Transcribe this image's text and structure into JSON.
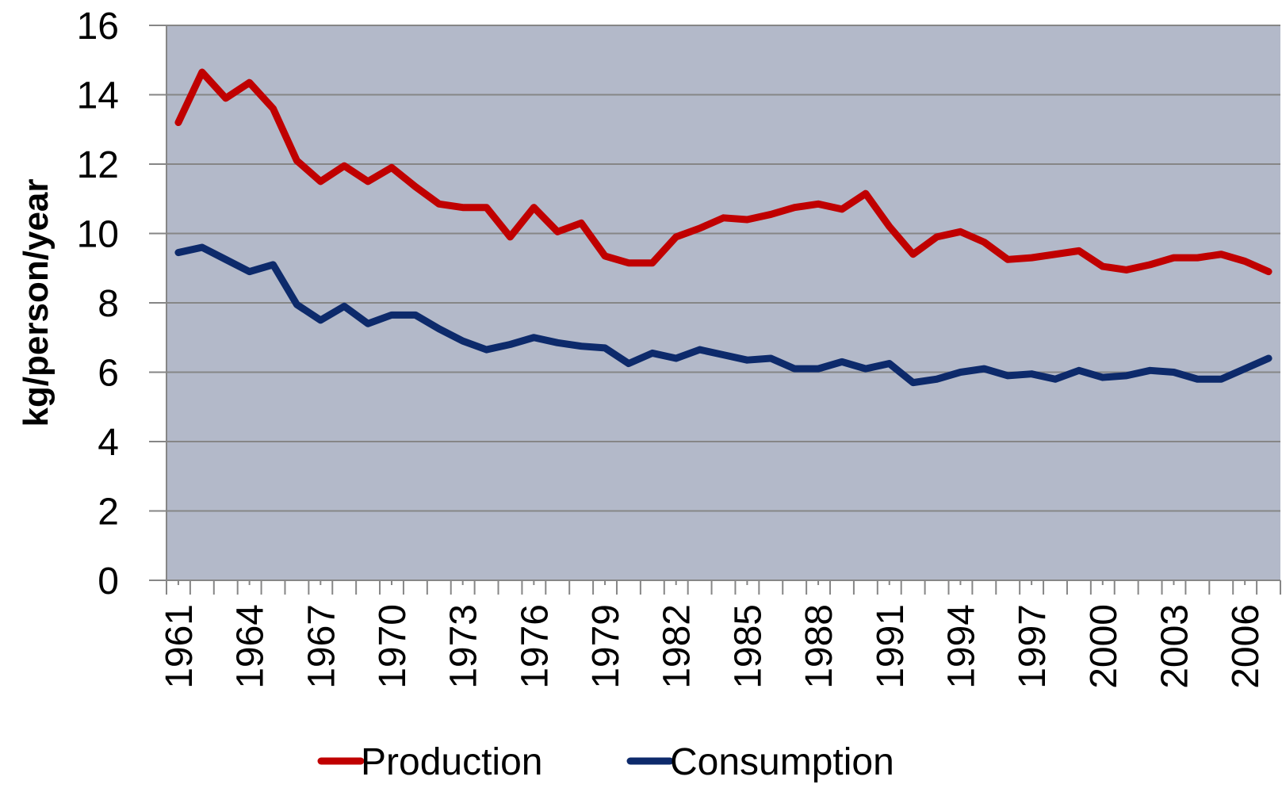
{
  "chart_data": {
    "type": "line",
    "y_label": "kg/person/year",
    "x": [
      1961,
      1962,
      1963,
      1964,
      1965,
      1966,
      1967,
      1968,
      1969,
      1970,
      1971,
      1972,
      1973,
      1974,
      1975,
      1976,
      1977,
      1978,
      1979,
      1980,
      1981,
      1982,
      1983,
      1984,
      1985,
      1986,
      1987,
      1988,
      1989,
      1990,
      1991,
      1992,
      1993,
      1994,
      1995,
      1996,
      1997,
      1998,
      1999,
      2000,
      2001,
      2002,
      2003,
      2004,
      2005,
      2006,
      2007
    ],
    "series": [
      {
        "name": "Production",
        "color": "#c00000",
        "values": [
          13.2,
          14.65,
          13.9,
          14.35,
          13.6,
          12.1,
          11.5,
          11.95,
          11.5,
          11.9,
          11.35,
          10.85,
          10.75,
          10.75,
          9.9,
          10.75,
          10.05,
          10.3,
          9.35,
          9.15,
          9.15,
          9.9,
          10.15,
          10.45,
          10.4,
          10.55,
          10.75,
          10.85,
          10.7,
          11.15,
          10.2,
          9.4,
          9.9,
          10.05,
          9.75,
          9.25,
          9.3,
          9.4,
          9.5,
          9.05,
          8.95,
          9.1,
          9.3,
          9.3,
          9.4,
          9.2,
          8.9
        ]
      },
      {
        "name": "Consumption",
        "color": "#0d2a6b",
        "values": [
          9.45,
          9.6,
          9.25,
          8.9,
          9.1,
          7.95,
          7.5,
          7.9,
          7.4,
          7.65,
          7.65,
          7.25,
          6.9,
          6.65,
          6.8,
          7.0,
          6.85,
          6.75,
          6.7,
          6.25,
          6.55,
          6.4,
          6.65,
          6.5,
          6.35,
          6.4,
          6.1,
          6.1,
          6.3,
          6.1,
          6.25,
          5.7,
          5.8,
          6.0,
          6.1,
          5.9,
          5.95,
          5.8,
          6.05,
          5.85,
          5.9,
          6.05,
          6.0,
          5.8,
          5.8,
          6.1,
          6.4
        ]
      }
    ],
    "xlim": [
      1960.5,
      2007.5
    ],
    "xticks": [
      1961,
      1964,
      1967,
      1970,
      1973,
      1976,
      1979,
      1982,
      1985,
      1988,
      1991,
      1994,
      1997,
      2000,
      2003,
      2006
    ],
    "ylim": [
      0,
      16
    ],
    "yticks": [
      0,
      2,
      4,
      6,
      8,
      10,
      12,
      14,
      16
    ],
    "grid": true,
    "plot_background": "#b3b9c9",
    "legend": "bottom"
  }
}
